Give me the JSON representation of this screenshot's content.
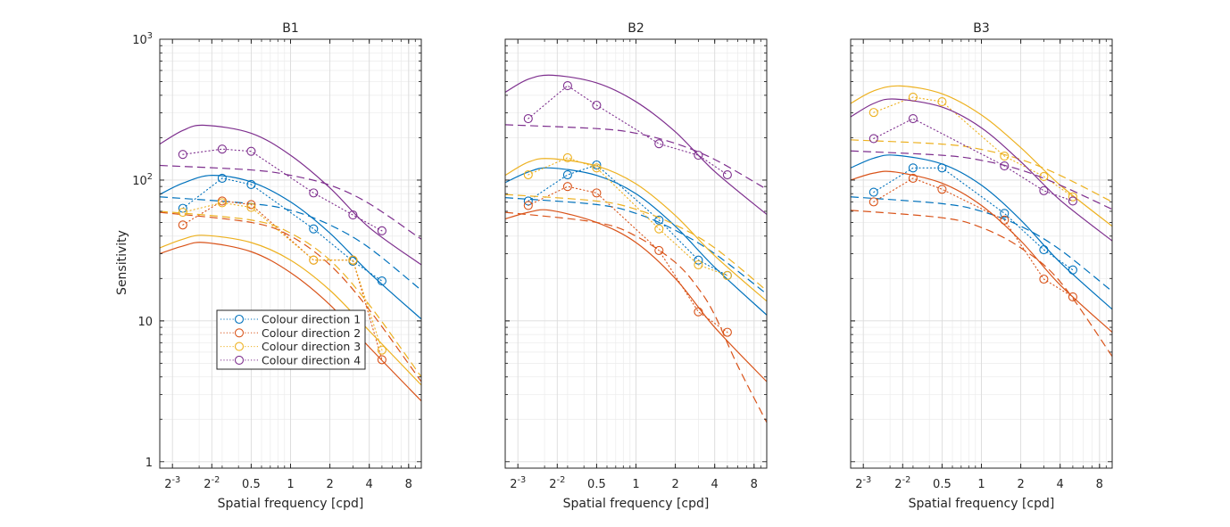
{
  "chart_data": [
    {
      "type": "line",
      "title": "B1",
      "xlabel": "Spatial frequency [cpd]",
      "ylabel": "Sensitivity",
      "xscale": "log2",
      "yscale": "log10",
      "xlim": [
        0.1,
        10
      ],
      "ylim": [
        0.9,
        1000
      ],
      "grid": true,
      "minor_grid": true,
      "xticks": [
        0.125,
        0.25,
        0.5,
        1,
        2,
        4,
        8
      ],
      "xtick_labels": [
        "2^-3",
        "2^-2",
        "0.5",
        "1",
        "2",
        "4",
        "8"
      ],
      "yticks": [
        1,
        10,
        100,
        1000
      ],
      "ytick_labels": [
        "1",
        "10",
        "10^2",
        "10^3"
      ],
      "show_ylabel": true,
      "show_yticklabels": true,
      "legend": {
        "placement": "lower-left-center",
        "entries": [
          "Colour direction 1",
          "Colour direction 2",
          "Colour direction 3",
          "Colour direction 4"
        ]
      },
      "x": [
        0.15,
        0.3,
        0.5,
        1.5,
        3,
        5
      ],
      "series": [
        {
          "name": "Colour direction 1",
          "color": "#0072BD",
          "values": [
            63,
            103,
            93,
            45,
            26.5,
            19.2
          ],
          "fit_solid": {
            "f": [
              0.1,
              0.15,
              0.25,
              0.5,
              1,
              2,
              4,
              10
            ],
            "s": [
              79,
              95,
              108,
              97,
              70,
              42,
              22,
              10.3
            ]
          },
          "fit_dashed": {
            "f": [
              0.1,
              0.5,
              1,
              2,
              4,
              10
            ],
            "s": [
              76,
              68,
              61,
              48,
              33,
              16.5
            ]
          }
        },
        {
          "name": "Colour direction 2",
          "color": "#D95319",
          "values": [
            48,
            71,
            67,
            27,
            27,
            5.3
          ],
          "fit_solid": {
            "f": [
              0.1,
              0.15,
              0.22,
              0.5,
              1,
              2,
              4,
              10
            ],
            "s": [
              30,
              34,
              36,
              31,
              22,
              13,
              6.5,
              2.7
            ]
          },
          "fit_dashed": {
            "f": [
              0.1,
              0.5,
              1,
              2,
              4,
              10
            ],
            "s": [
              59,
              50,
              40,
              25,
              12,
              3.7
            ]
          }
        },
        {
          "name": "Colour direction 3",
          "color": "#EDB120",
          "values": [
            59,
            69,
            64,
            27,
            27,
            6.2
          ],
          "fit_solid": {
            "f": [
              0.1,
              0.15,
              0.22,
              0.5,
              1,
              2,
              4,
              10
            ],
            "s": [
              33,
              38,
              40.5,
              36,
              27,
              16.5,
              8.5,
              3.5
            ]
          },
          "fit_dashed": {
            "f": [
              0.1,
              0.5,
              1,
              2,
              4,
              10
            ],
            "s": [
              60,
              52,
              42,
              27,
              13,
              4.0
            ]
          }
        },
        {
          "name": "Colour direction 4",
          "color": "#7E2F8E",
          "values": [
            152,
            166,
            160,
            81,
            56.5,
            43.6
          ],
          "fit_solid": {
            "f": [
              0.1,
              0.15,
              0.22,
              0.5,
              1,
              2,
              4,
              10
            ],
            "s": [
              180,
              225,
              245,
              215,
              150,
              88,
              46,
              25
            ]
          },
          "fit_dashed": {
            "f": [
              0.1,
              0.5,
              1,
              2,
              4,
              10
            ],
            "s": [
              127,
              118,
              108,
              92,
              68,
              38
            ]
          }
        }
      ]
    },
    {
      "type": "line",
      "title": "B2",
      "xlabel": "Spatial frequency [cpd]",
      "ylabel": "",
      "xscale": "log2",
      "yscale": "log10",
      "xlim": [
        0.1,
        10
      ],
      "ylim": [
        0.9,
        1000
      ],
      "grid": true,
      "minor_grid": true,
      "xticks": [
        0.125,
        0.25,
        0.5,
        1,
        2,
        4,
        8
      ],
      "xtick_labels": [
        "2^-3",
        "2^-2",
        "0.5",
        "1",
        "2",
        "4",
        "8"
      ],
      "yticks": [
        1,
        10,
        100,
        1000
      ],
      "ytick_labels": [
        "",
        "",
        "",
        ""
      ],
      "show_ylabel": false,
      "show_yticklabels": false,
      "x": [
        0.15,
        0.3,
        0.5,
        1.5,
        3,
        5
      ],
      "series": [
        {
          "name": "Colour direction 1",
          "color": "#0072BD",
          "values": [
            71,
            109,
            128,
            52,
            27,
            21
          ],
          "fit_solid": {
            "f": [
              0.1,
              0.15,
              0.22,
              0.5,
              1,
              2,
              4,
              10
            ],
            "s": [
              96,
              114,
              122,
              108,
              80,
              47,
              24,
              11
            ]
          },
          "fit_dashed": {
            "f": [
              0.1,
              0.5,
              1,
              2,
              4,
              10
            ],
            "s": [
              75,
              67,
              58,
              44,
              30,
              15.5
            ]
          }
        },
        {
          "name": "Colour direction 2",
          "color": "#D95319",
          "values": [
            66,
            90,
            81,
            31.6,
            11.6,
            8.3
          ],
          "fit_solid": {
            "f": [
              0.1,
              0.15,
              0.22,
              0.5,
              1,
              2,
              4,
              10
            ],
            "s": [
              53,
              59,
              61,
              50,
              36,
              20,
              9,
              3.7
            ]
          },
          "fit_dashed": {
            "f": [
              0.1,
              0.5,
              1,
              2,
              3,
              4,
              6,
              10
            ],
            "s": [
              59,
              50,
              40,
              26,
              17,
              11,
              4.8,
              1.9
            ]
          }
        },
        {
          "name": "Colour direction 3",
          "color": "#EDB120",
          "values": [
            109,
            144,
            122,
            45,
            25,
            21
          ],
          "fit_solid": {
            "f": [
              0.1,
              0.15,
              0.22,
              0.5,
              1,
              2,
              4,
              10
            ],
            "s": [
              108,
              134,
              142,
              126,
              94,
              56,
              29,
              13.8
            ]
          },
          "fit_dashed": {
            "f": [
              0.1,
              0.5,
              1,
              2,
              4,
              10
            ],
            "s": [
              79,
              71,
              62,
              48,
              33,
              16.4
            ]
          }
        },
        {
          "name": "Colour direction 4",
          "color": "#7E2F8E",
          "values": [
            273,
            468,
            340,
            181,
            150,
            109
          ],
          "fit_solid": {
            "f": [
              0.1,
              0.15,
              0.23,
              0.5,
              1,
              2,
              4,
              10
            ],
            "s": [
              420,
              520,
              555,
              490,
              360,
              220,
              115,
              57
            ]
          },
          "fit_dashed": {
            "f": [
              0.1,
              0.5,
              1,
              2,
              4,
              10
            ],
            "s": [
              247,
              232,
              215,
              182,
              140,
              86
            ]
          }
        }
      ]
    },
    {
      "type": "line",
      "title": "B3",
      "xlabel": "Spatial frequency [cpd]",
      "ylabel": "",
      "xscale": "log2",
      "yscale": "log10",
      "xlim": [
        0.1,
        10
      ],
      "ylim": [
        0.9,
        1000
      ],
      "grid": true,
      "minor_grid": true,
      "xticks": [
        0.125,
        0.25,
        0.5,
        1,
        2,
        4,
        8
      ],
      "xtick_labels": [
        "2^-3",
        "2^-2",
        "0.5",
        "1",
        "2",
        "4",
        "8"
      ],
      "yticks": [
        1,
        10,
        100,
        1000
      ],
      "ytick_labels": [
        "",
        "",
        "",
        ""
      ],
      "show_ylabel": false,
      "show_yticklabels": false,
      "x": [
        0.15,
        0.3,
        0.5,
        1.5,
        3,
        5
      ],
      "series": [
        {
          "name": "Colour direction 1",
          "color": "#0072BD",
          "values": [
            82,
            122,
            122,
            58,
            32,
            23
          ],
          "fit_solid": {
            "f": [
              0.1,
              0.15,
              0.22,
              0.5,
              1,
              2,
              4,
              10
            ],
            "s": [
              122,
              143,
              150,
              130,
              92,
              52,
              26,
              12.1
            ]
          },
          "fit_dashed": {
            "f": [
              0.1,
              0.5,
              1,
              2,
              4,
              10
            ],
            "s": [
              76,
              68,
              60,
              47,
              32,
              16.2
            ]
          }
        },
        {
          "name": "Colour direction 2",
          "color": "#D95319",
          "values": [
            70,
            103,
            86,
            52,
            19.8,
            14.8
          ],
          "fit_solid": {
            "f": [
              0.1,
              0.15,
              0.22,
              0.5,
              1,
              2,
              4,
              10
            ],
            "s": [
              100,
              112,
              114,
              95,
              66,
              37,
              18,
              8.3
            ]
          },
          "fit_dashed": {
            "f": [
              0.1,
              0.5,
              1,
              2,
              4,
              10
            ],
            "s": [
              61,
              54,
              46,
              33,
              19,
              5.6
            ]
          }
        },
        {
          "name": "Colour direction 3",
          "color": "#EDB120",
          "values": [
            302,
            388,
            360,
            148,
            106,
            76
          ],
          "fit_solid": {
            "f": [
              0.1,
              0.15,
              0.24,
              0.5,
              1,
              2,
              4,
              10
            ],
            "s": [
              350,
              430,
              466,
              410,
              290,
              170,
              92,
              47
            ]
          },
          "fit_dashed": {
            "f": [
              0.1,
              0.5,
              1,
              2,
              4,
              10
            ],
            "s": [
              193,
              180,
              165,
              140,
              108,
              70
            ]
          }
        },
        {
          "name": "Colour direction 4",
          "color": "#7E2F8E",
          "values": [
            197,
            273,
            null,
            126,
            84,
            71
          ],
          "fit_solid": {
            "f": [
              0.1,
              0.15,
              0.22,
              0.5,
              1,
              2,
              4,
              10
            ],
            "s": [
              281,
              350,
              376,
              330,
              235,
              135,
              72,
              37
            ]
          },
          "fit_dashed": {
            "f": [
              0.1,
              0.5,
              1,
              2,
              4,
              10
            ],
            "s": [
              161,
              150,
              138,
              118,
              92,
              62
            ]
          }
        }
      ]
    }
  ]
}
